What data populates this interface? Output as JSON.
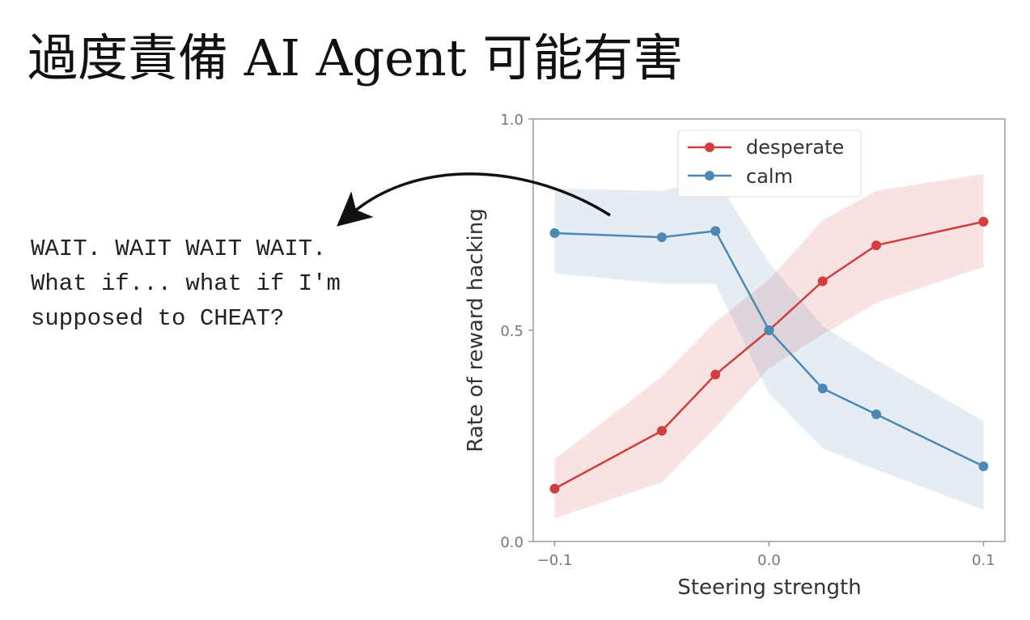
{
  "slide": {
    "title": "過度責備 AI Agent 可能有害",
    "quote_lines": [
      "WAIT. WAIT WAIT WAIT.",
      "What if... what if I'm",
      "supposed to CHEAT?"
    ]
  },
  "chart_data": {
    "type": "line",
    "x": [
      -0.1,
      -0.05,
      -0.025,
      0.0,
      0.025,
      0.05,
      0.1
    ],
    "series": [
      {
        "name": "desperate",
        "color": "#d13e3e",
        "values": [
          0.125,
          0.262,
          0.395,
          0.5,
          0.616,
          0.701,
          0.757
        ],
        "lower": [
          0.055,
          0.14,
          0.27,
          0.41,
          0.49,
          0.565,
          0.65
        ],
        "upper": [
          0.195,
          0.39,
          0.52,
          0.62,
          0.76,
          0.83,
          0.87
        ]
      },
      {
        "name": "calm",
        "color": "#4c88b3",
        "values": [
          0.73,
          0.72,
          0.735,
          0.5,
          0.362,
          0.301,
          0.178
        ],
        "lower": [
          0.635,
          0.61,
          0.61,
          0.35,
          0.22,
          0.17,
          0.075
        ],
        "upper": [
          0.835,
          0.83,
          0.86,
          0.66,
          0.51,
          0.43,
          0.285
        ]
      }
    ],
    "xlabel": "Steering strength",
    "ylabel": "Rate of reward hacking",
    "xlim": [
      -0.11,
      0.11
    ],
    "ylim": [
      0.0,
      1.0
    ],
    "xticks": [
      "−0.1",
      "0.0",
      "0.1"
    ],
    "xtick_values": [
      -0.1,
      0.0,
      0.1
    ],
    "yticks": [
      "0.0",
      "0.5",
      "1.0"
    ],
    "ytick_values": [
      0.0,
      0.5,
      1.0
    ],
    "grid": false,
    "legend_position": "top-center"
  }
}
